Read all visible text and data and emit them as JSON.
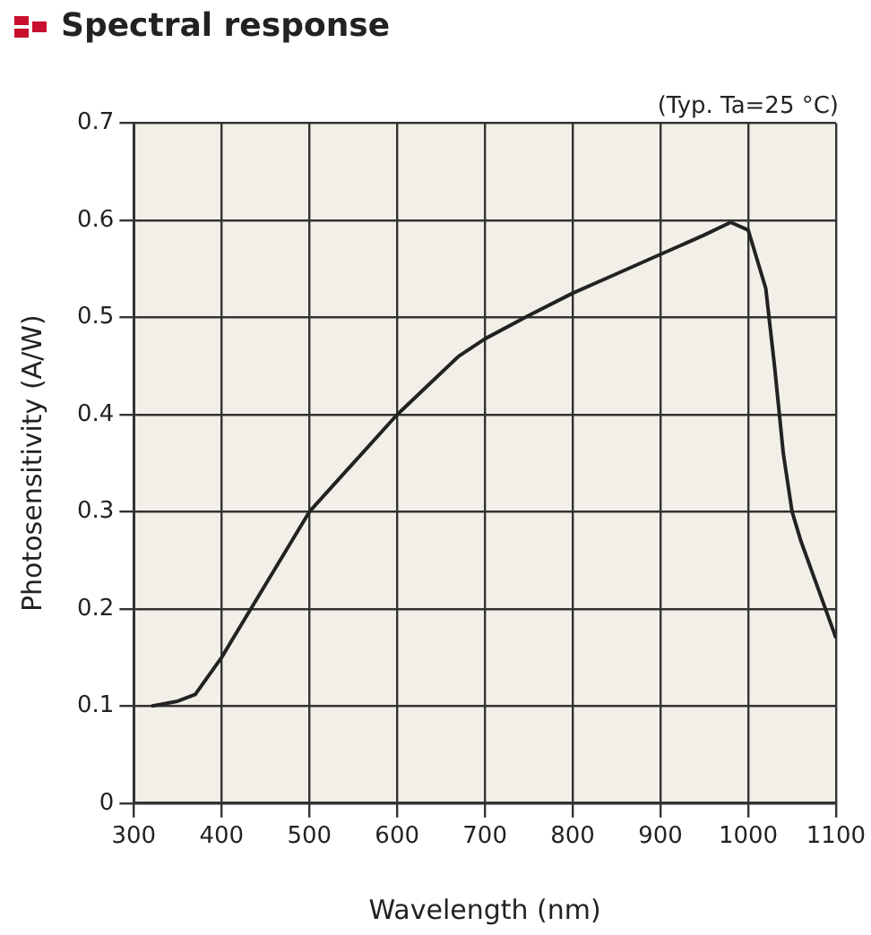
{
  "chart_data": {
    "type": "line",
    "title": "Spectral response",
    "xlabel": "Wavelength (nm)",
    "ylabel": "Photosensitivity (A/W)",
    "annotations": [
      "(Typ. Ta=25 °C)"
    ],
    "x": [
      320,
      350,
      370,
      400,
      450,
      500,
      550,
      600,
      670,
      700,
      750,
      800,
      850,
      900,
      950,
      980,
      1000,
      1020,
      1030,
      1040,
      1050,
      1060,
      1080,
      1100
    ],
    "series": [
      {
        "color": "#222222",
        "values": [
          0.1,
          0.105,
          0.112,
          0.15,
          0.225,
          0.3,
          0.35,
          0.4,
          0.46,
          0.478,
          0.502,
          0.525,
          0.545,
          0.565,
          0.585,
          0.598,
          0.59,
          0.53,
          0.45,
          0.36,
          0.3,
          0.27,
          0.22,
          0.17
        ]
      }
    ],
    "xlim": [
      300,
      1100
    ],
    "xticks": [
      300,
      400,
      500,
      600,
      700,
      800,
      900,
      1000,
      1100
    ],
    "ylim": [
      0,
      0.7
    ],
    "yticks": [
      0,
      0.1,
      0.2,
      0.3,
      0.4,
      0.5,
      0.6,
      0.7
    ],
    "grid": true,
    "legend": false,
    "marker": "none",
    "line_style": "solid"
  }
}
